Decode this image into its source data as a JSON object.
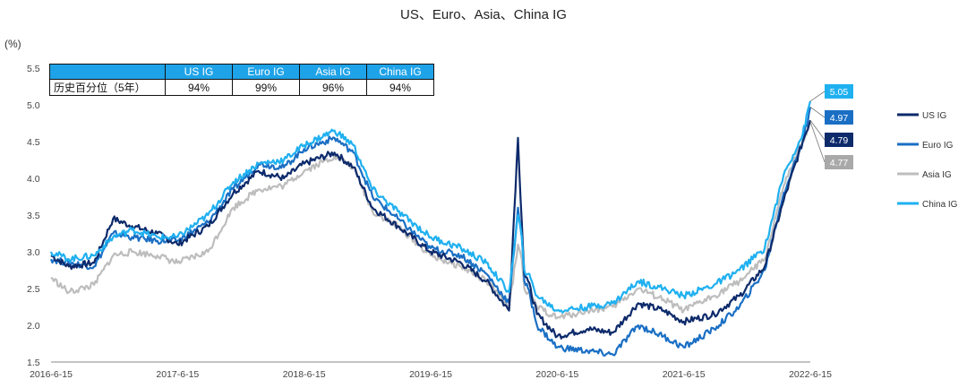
{
  "chart_data": {
    "type": "line",
    "title": "US、Euro、Asia、China IG",
    "ylabel": "(%)",
    "ylim": [
      1.5,
      5.5
    ],
    "yticks": [
      "1.5",
      "2.0",
      "2.5",
      "3.0",
      "3.5",
      "4.0",
      "4.5",
      "5.0",
      "5.5"
    ],
    "xticks": [
      "2016-6-15",
      "2017-6-15",
      "2018-6-15",
      "2019-6-15",
      "2020-6-15",
      "2021-6-15",
      "2022-6-15"
    ],
    "grid": false,
    "legend_position": "right",
    "series": [
      {
        "name": "US IG",
        "color": "#0d2a6b",
        "end_label": "4.79",
        "x": [
          2016.46,
          2016.6,
          2016.8,
          2016.95,
          2017.1,
          2017.3,
          2017.46,
          2017.7,
          2017.9,
          2018.1,
          2018.3,
          2018.46,
          2018.7,
          2018.85,
          2019.0,
          2019.2,
          2019.46,
          2019.7,
          2019.9,
          2020.08,
          2020.15,
          2020.18,
          2020.2,
          2020.23,
          2020.3,
          2020.46,
          2020.7,
          2020.9,
          2021.1,
          2021.3,
          2021.46,
          2021.7,
          2021.9,
          2022.1,
          2022.25,
          2022.4,
          2022.46
        ],
        "values": [
          2.95,
          2.8,
          2.85,
          3.45,
          3.35,
          3.25,
          3.1,
          3.35,
          3.8,
          4.1,
          4.0,
          4.2,
          4.35,
          4.15,
          3.6,
          3.35,
          3.0,
          2.85,
          2.6,
          2.2,
          4.55,
          3.4,
          2.7,
          2.6,
          2.15,
          1.85,
          1.95,
          1.9,
          2.3,
          2.2,
          2.05,
          2.15,
          2.4,
          2.8,
          3.7,
          4.5,
          4.79
        ]
      },
      {
        "name": "Euro IG",
        "color": "#1a6fc4",
        "end_label": "4.97",
        "x": [
          2016.46,
          2016.6,
          2016.8,
          2016.95,
          2017.1,
          2017.3,
          2017.46,
          2017.7,
          2017.9,
          2018.1,
          2018.3,
          2018.46,
          2018.7,
          2018.85,
          2019.0,
          2019.2,
          2019.46,
          2019.7,
          2019.9,
          2020.08,
          2020.15,
          2020.18,
          2020.2,
          2020.23,
          2020.3,
          2020.46,
          2020.7,
          2020.9,
          2021.1,
          2021.3,
          2021.46,
          2021.7,
          2021.9,
          2022.1,
          2022.25,
          2022.4,
          2022.46
        ],
        "values": [
          2.9,
          2.85,
          2.8,
          3.25,
          3.2,
          3.15,
          3.15,
          3.4,
          3.85,
          4.2,
          4.15,
          4.4,
          4.55,
          4.35,
          3.75,
          3.45,
          3.05,
          2.95,
          2.7,
          2.3,
          3.6,
          3.2,
          2.6,
          2.5,
          2.0,
          1.7,
          1.65,
          1.6,
          2.0,
          1.85,
          1.7,
          1.95,
          2.25,
          2.75,
          3.8,
          4.5,
          4.97
        ]
      },
      {
        "name": "Asia IG",
        "color": "#bdbdbd",
        "end_label": "4.77",
        "x": [
          2016.46,
          2016.6,
          2016.8,
          2016.95,
          2017.1,
          2017.3,
          2017.46,
          2017.7,
          2017.9,
          2018.1,
          2018.3,
          2018.46,
          2018.7,
          2018.85,
          2019.0,
          2019.2,
          2019.46,
          2019.7,
          2019.9,
          2020.08,
          2020.15,
          2020.18,
          2020.2,
          2020.23,
          2020.3,
          2020.46,
          2020.7,
          2020.9,
          2021.1,
          2021.3,
          2021.46,
          2021.7,
          2021.9,
          2022.1,
          2022.25,
          2022.4,
          2022.46
        ],
        "values": [
          2.65,
          2.45,
          2.55,
          2.95,
          3.0,
          2.95,
          2.85,
          3.0,
          3.6,
          3.85,
          3.9,
          4.1,
          4.3,
          4.15,
          3.55,
          3.35,
          2.95,
          2.8,
          2.6,
          2.25,
          3.1,
          2.9,
          2.5,
          2.45,
          2.25,
          2.1,
          2.2,
          2.25,
          2.5,
          2.35,
          2.2,
          2.4,
          2.6,
          2.9,
          3.9,
          4.5,
          4.77
        ]
      },
      {
        "name": "China IG",
        "color": "#1fb0f0",
        "end_label": "5.05",
        "x": [
          2016.46,
          2016.6,
          2016.8,
          2016.95,
          2017.1,
          2017.3,
          2017.46,
          2017.7,
          2017.9,
          2018.1,
          2018.3,
          2018.46,
          2018.7,
          2018.85,
          2019.0,
          2019.2,
          2019.46,
          2019.7,
          2019.9,
          2020.08,
          2020.15,
          2020.18,
          2020.2,
          2020.23,
          2020.3,
          2020.46,
          2020.7,
          2020.9,
          2021.1,
          2021.3,
          2021.46,
          2021.7,
          2021.9,
          2022.1,
          2022.25,
          2022.4,
          2022.46
        ],
        "values": [
          3.0,
          2.9,
          2.95,
          3.2,
          3.3,
          3.2,
          3.2,
          3.5,
          3.95,
          4.2,
          4.25,
          4.45,
          4.65,
          4.45,
          3.85,
          3.55,
          3.2,
          3.05,
          2.85,
          2.45,
          3.5,
          3.2,
          2.75,
          2.7,
          2.4,
          2.2,
          2.25,
          2.3,
          2.6,
          2.5,
          2.4,
          2.55,
          2.75,
          3.05,
          4.05,
          4.6,
          5.05
        ]
      }
    ],
    "table": {
      "header": [
        "",
        "US IG",
        "Euro IG",
        "Asia IG",
        "China IG"
      ],
      "row_label": "历史百分位（5年）",
      "row_values": [
        "94%",
        "99%",
        "96%",
        "94%"
      ]
    },
    "end_labels_order": [
      "5.05",
      "4.97",
      "4.79",
      "4.77"
    ]
  }
}
